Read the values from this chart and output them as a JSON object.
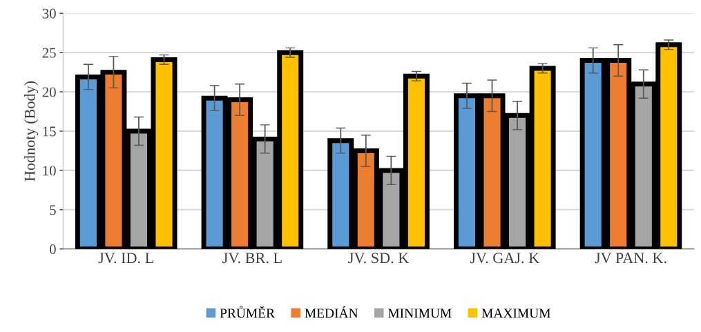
{
  "chart_data": {
    "type": "bar",
    "ylabel": "Hodnoty (Body)",
    "categories": [
      "JV. ID. L",
      "JV. BR. L",
      "JV. SD. K",
      "JV. GAJ. K",
      "JV PAN. K."
    ],
    "series": [
      {
        "name": "PRŮMĚR",
        "color": "#5b9bd5",
        "values": [
          21.9,
          19.2,
          13.8,
          19.5,
          24.0
        ],
        "errors": [
          1.6,
          1.6,
          1.6,
          1.6,
          1.6
        ]
      },
      {
        "name": "MEDIÁN",
        "color": "#ed7d31",
        "values": [
          22.5,
          19.0,
          12.5,
          19.5,
          24.0
        ],
        "errors": [
          2.0,
          2.0,
          2.0,
          2.0,
          2.0
        ]
      },
      {
        "name": "MINIMUM",
        "color": "#a5a5a5",
        "values": [
          15.0,
          14.0,
          10.0,
          17.0,
          21.0
        ],
        "errors": [
          1.8,
          1.8,
          1.8,
          1.8,
          1.8
        ]
      },
      {
        "name": "MAXIMUM",
        "color": "#ffc000",
        "values": [
          24.1,
          25.0,
          22.0,
          23.0,
          26.0
        ],
        "errors": [
          0.6,
          0.6,
          0.6,
          0.6,
          0.6
        ]
      }
    ],
    "ylim": [
      0,
      30
    ],
    "yticks": [
      0,
      5,
      10,
      15,
      20,
      25,
      30
    ],
    "grid": "y",
    "legend": "bottom"
  }
}
